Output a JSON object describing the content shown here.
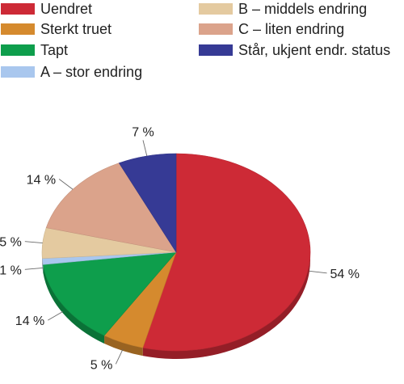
{
  "chart_data": {
    "type": "pie",
    "title": "",
    "slices": [
      {
        "label": "Uendret",
        "value": 54,
        "value_label": "54 %",
        "color": "#cd2a36"
      },
      {
        "label": "Sterkt truet",
        "value": 5,
        "value_label": "5 %",
        "color": "#d58a2e"
      },
      {
        "label": "Tapt",
        "value": 14,
        "value_label": "14 %",
        "color": "#0e9e4c"
      },
      {
        "label": "A – stor endring",
        "value": 1,
        "value_label": "1 %",
        "color": "#a9c7ee"
      },
      {
        "label": "B – middels endring",
        "value": 5,
        "value_label": "5 %",
        "color": "#e4caa0"
      },
      {
        "label": "C – liten endring",
        "value": 14,
        "value_label": "14 %",
        "color": "#dba38b"
      },
      {
        "label": "Står, ukjent endr. status",
        "value": 7,
        "value_label": "7 %",
        "color": "#363a95"
      }
    ],
    "legend_placement": "top"
  }
}
